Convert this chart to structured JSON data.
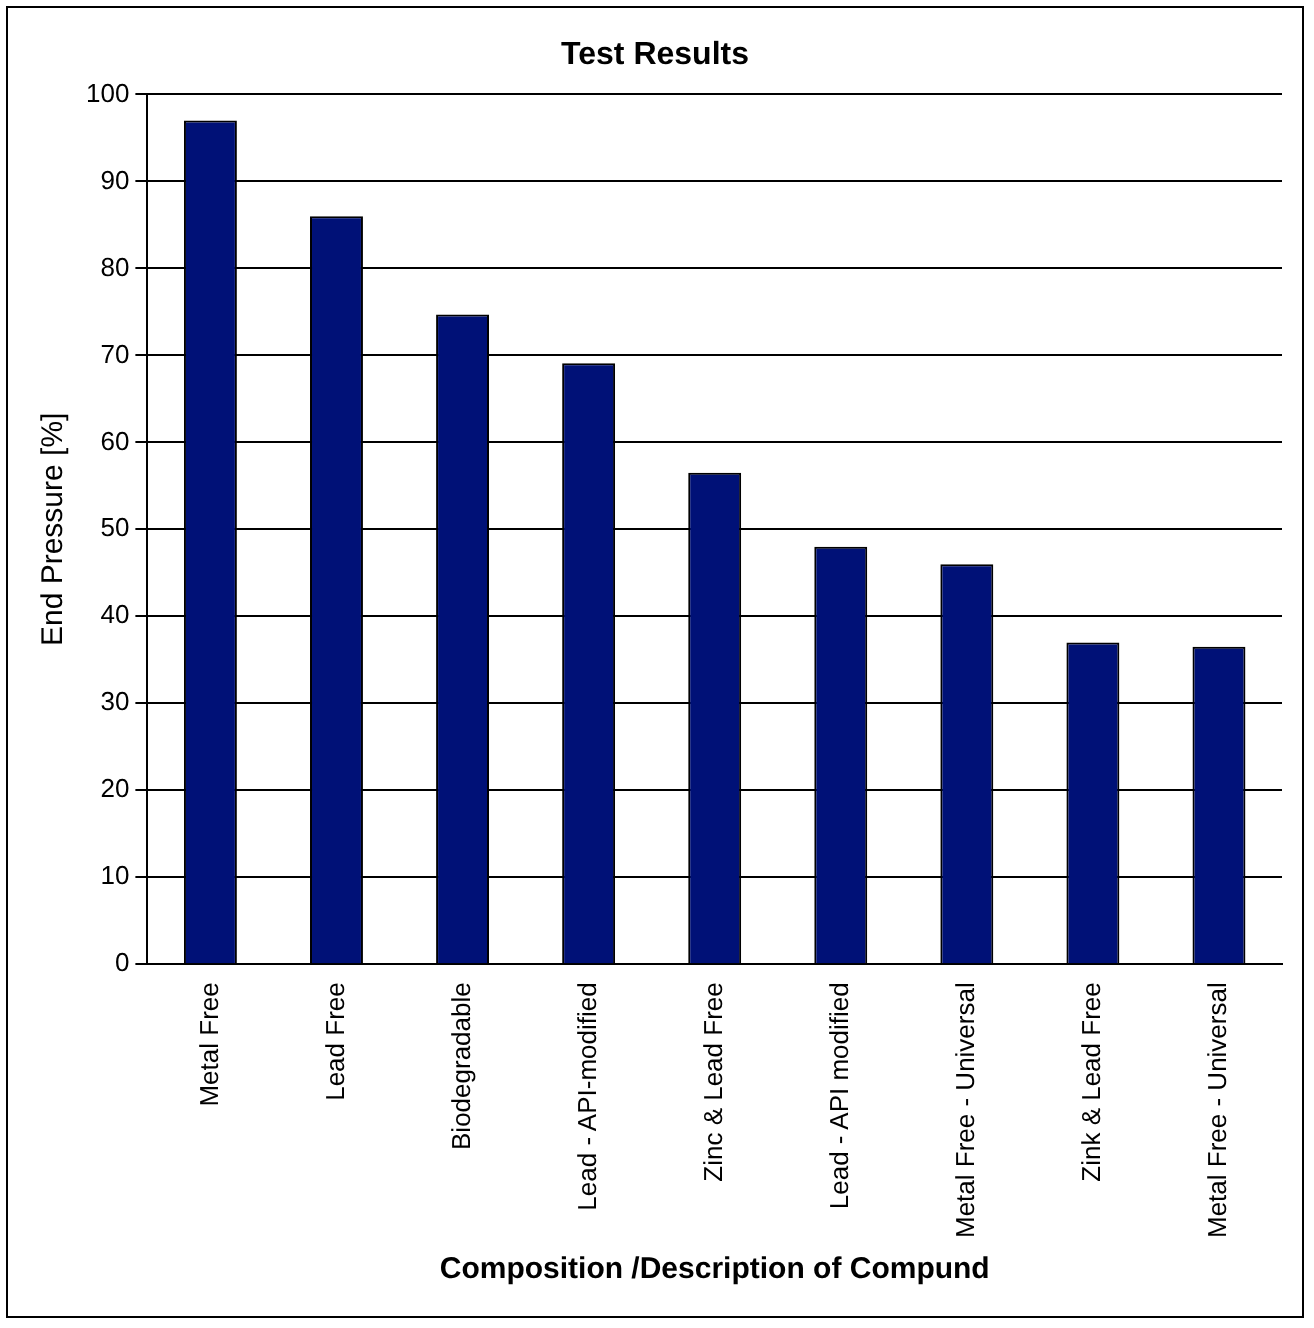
{
  "chart_data": {
    "type": "bar",
    "title": "Test Results",
    "xlabel": "Composition /Description of Compund",
    "ylabel": "End Pressure [%]",
    "categories": [
      "Metal Free",
      "Lead Free",
      "Biodegradable",
      "Lead - API-modified",
      "Zinc & Lead Free",
      "Lead - API modified",
      "Metal Free - Universal",
      "Zink & Lead Free",
      "Metal Free - Universal"
    ],
    "values": [
      97,
      86,
      74.7,
      69.1,
      56.5,
      48,
      46,
      37,
      36.5
    ],
    "color": "#001177",
    "ylim": [
      0,
      100
    ],
    "yticks": [
      0,
      10,
      20,
      30,
      40,
      50,
      60,
      70,
      80,
      90,
      100
    ],
    "grid": "y",
    "legend": false
  }
}
